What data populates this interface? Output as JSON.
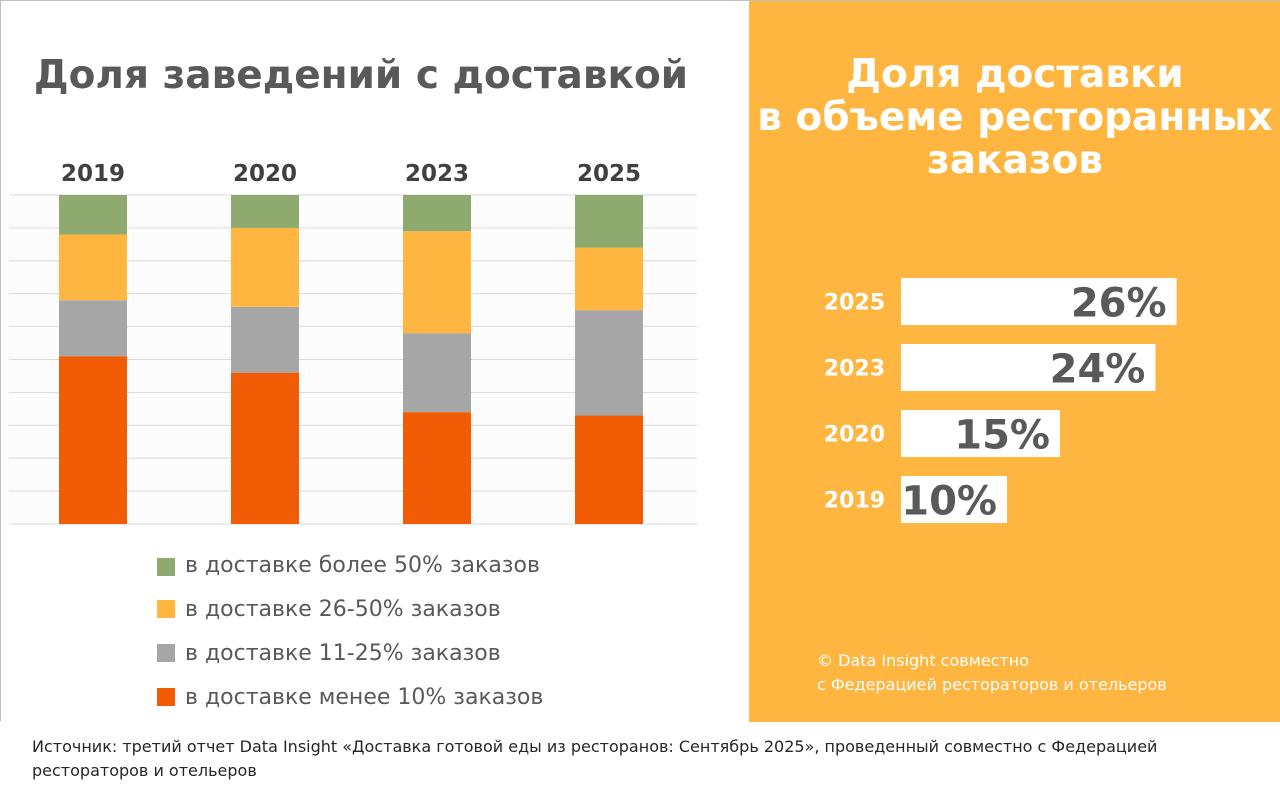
{
  "colors": {
    "orange_panel": "#FFB640",
    "green": "#8FAA6E",
    "yellow": "#FFB640",
    "gray": "#A6A6A6",
    "red_orange": "#F25C05",
    "white": "#FFFFFF",
    "text": "#595959"
  },
  "left_panel": {
    "title": "Доля заведений с доставкой"
  },
  "right_panel": {
    "title_lines": [
      "Доля доставки",
      "в объеме ресторанных",
      "заказов"
    ],
    "copyright_lines": [
      "© Data Insight совместно",
      "с Федерацией рестораторов и отельеров"
    ]
  },
  "legend": [
    {
      "label": "в доставке более 50% заказов",
      "color": "#8FAA6E"
    },
    {
      "label": "в доставке 26-50% заказов",
      "color": "#FFB640"
    },
    {
      "label": "в доставке 11-25% заказов",
      "color": "#A6A6A6"
    },
    {
      "label": "в доставке менее 10% заказов",
      "color": "#F25C05"
    }
  ],
  "source": "Источник: третий отчет Data Insight «Доставка готовой еды из ресторанов: Сентябрь 2025», проведенный совместно с Федерацией рестораторов и отельеров",
  "chart_data": [
    {
      "type": "bar",
      "stacked": true,
      "title": "Доля заведений с доставкой",
      "categories": [
        "2019",
        "2020",
        "2023",
        "2025"
      ],
      "ylim": [
        0,
        100
      ],
      "unit": "%",
      "grid": true,
      "series": [
        {
          "name": "в доставке менее 10% заказов",
          "color": "#F25C05",
          "values": [
            51,
            46,
            34,
            33
          ]
        },
        {
          "name": "в доставке 11-25% заказов",
          "color": "#A6A6A6",
          "values": [
            17,
            20,
            24,
            32
          ]
        },
        {
          "name": "в доставке 26-50% заказов",
          "color": "#FFB640",
          "values": [
            20,
            24,
            31,
            19
          ]
        },
        {
          "name": "в доставке более 50% заказов",
          "color": "#8FAA6E",
          "values": [
            12,
            10,
            11,
            16
          ]
        }
      ]
    },
    {
      "type": "bar",
      "orientation": "horizontal",
      "title": "Доля доставки в объеме ресторанных заказов",
      "categories": [
        "2025",
        "2023",
        "2020",
        "2019"
      ],
      "values": [
        26,
        24,
        15,
        10
      ],
      "labels": [
        "26%",
        "24%",
        "15%",
        "10%"
      ],
      "unit": "%"
    }
  ]
}
